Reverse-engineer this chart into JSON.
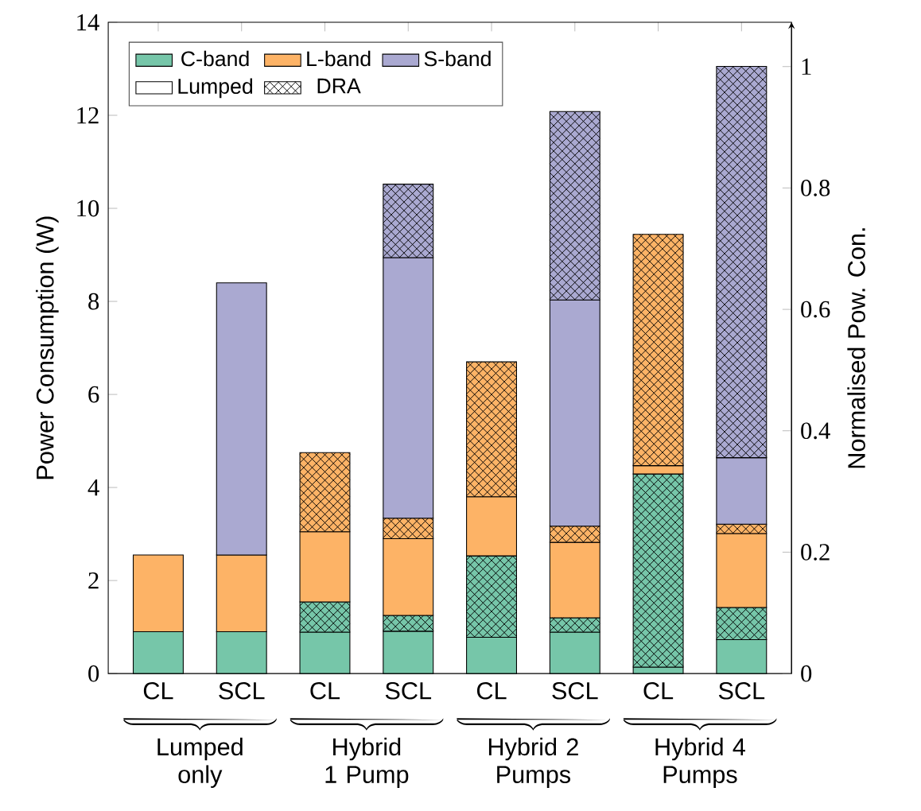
{
  "chart_data": {
    "type": "bar",
    "stacked": true,
    "categories": [
      "CL",
      "SCL",
      "CL",
      "SCL",
      "CL",
      "SCL",
      "CL",
      "SCL"
    ],
    "series": [
      {
        "name": "C-band",
        "color": "#76c6a9",
        "values": [
          0.9,
          0.9,
          0.89,
          0.91,
          0.78,
          0.89,
          0.14,
          0.73
        ]
      },
      {
        "color": "#76c6a9",
        "values": [
          null,
          null,
          0.65,
          0.34,
          1.75,
          0.31,
          4.15,
          0.69
        ]
      },
      {
        "name": "L-band",
        "color": "#fdb366",
        "values": [
          1.65,
          1.65,
          1.51,
          1.65,
          1.27,
          1.62,
          0.18,
          1.59
        ]
      },
      {
        "color": "#fdb366",
        "values": [
          null,
          null,
          1.7,
          0.44,
          2.9,
          0.35,
          4.97,
          0.2
        ]
      },
      {
        "name": "S-band",
        "color": "#aaa9d1",
        "values": [
          null,
          5.85,
          null,
          5.6,
          null,
          4.86,
          null,
          1.43
        ]
      },
      {
        "color": "#aaa9d1",
        "values": [
          null,
          null,
          null,
          1.58,
          null,
          4.05,
          null,
          8.41
        ]
      }
    ],
    "ylim": [
      0,
      14
    ],
    "yticks": [
      0,
      2,
      4,
      6,
      8,
      10,
      12,
      14
    ],
    "y2lim": [
      0,
      1.073
    ],
    "y2ticks": [
      0,
      0.2,
      0.4,
      0.6,
      0.8,
      1
    ],
    "ylabel": "Power Consumption (W)",
    "y2label": "Normalised Pow. Con.",
    "legend": "top left",
    "annotations": [
      "Lumped only",
      "Hybrid 1 Pump",
      "Hybrid 2 Pumps",
      "Hybrid 4 Pumps",
      "Lumped",
      "DRA"
    ]
  }
}
